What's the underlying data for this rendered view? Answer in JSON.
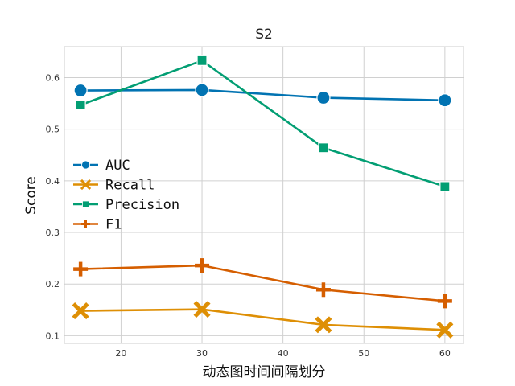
{
  "chart_data": {
    "type": "line",
    "title": "S2",
    "xlabel": "动态图时间间隔划分",
    "ylabel": "Score",
    "x": [
      15,
      30,
      45,
      60
    ],
    "xlim": [
      13,
      62.3
    ],
    "ylim": [
      0.085,
      0.66
    ],
    "xticks": [
      20,
      30,
      40,
      50,
      60
    ],
    "yticks": [
      0.1,
      0.2,
      0.3,
      0.4,
      0.5,
      0.6
    ],
    "grid": true,
    "legend_position": "center-left",
    "series": [
      {
        "name": "AUC",
        "values": [
          0.575,
          0.576,
          0.561,
          0.556
        ],
        "color": "#0173b2",
        "marker": "circle"
      },
      {
        "name": "Recall",
        "values": [
          0.148,
          0.151,
          0.121,
          0.111
        ],
        "color": "#de8f05",
        "marker": "x"
      },
      {
        "name": "Precision",
        "values": [
          0.547,
          0.633,
          0.464,
          0.389
        ],
        "color": "#029e73",
        "marker": "square"
      },
      {
        "name": "F1",
        "values": [
          0.229,
          0.236,
          0.189,
          0.167
        ],
        "color": "#d55e00",
        "marker": "plus"
      }
    ]
  }
}
